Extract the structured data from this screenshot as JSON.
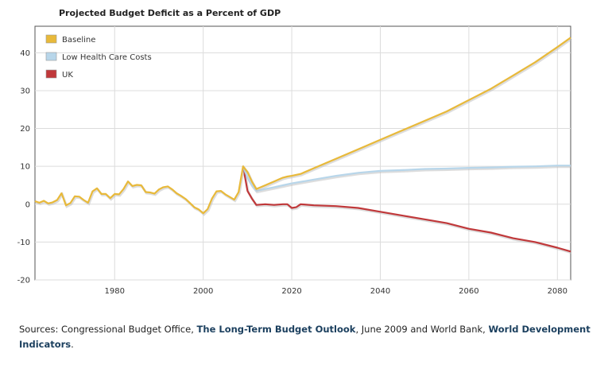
{
  "chart_data": {
    "type": "line",
    "title": "Projected Budget Deficit as a Percent of GDP",
    "xlabel": "",
    "ylabel": "",
    "xlim": [
      1962,
      2083
    ],
    "ylim": [
      -20,
      47
    ],
    "x_ticks": [
      1980,
      2000,
      2020,
      2040,
      2060,
      2080
    ],
    "y_ticks": [
      -20,
      -10,
      0,
      10,
      20,
      30,
      40
    ],
    "grid": true,
    "legend_position": "top-left",
    "series": [
      {
        "name": "Baseline",
        "color": "#e8b93a",
        "points": [
          [
            1962,
            0.8
          ],
          [
            1963,
            0.4
          ],
          [
            1964,
            0.9
          ],
          [
            1965,
            0.2
          ],
          [
            1966,
            0.5
          ],
          [
            1967,
            1.1
          ],
          [
            1968,
            2.9
          ],
          [
            1969,
            -0.3
          ],
          [
            1970,
            0.3
          ],
          [
            1971,
            2.1
          ],
          [
            1972,
            2.0
          ],
          [
            1973,
            1.1
          ],
          [
            1974,
            0.4
          ],
          [
            1975,
            3.4
          ],
          [
            1976,
            4.2
          ],
          [
            1977,
            2.7
          ],
          [
            1978,
            2.7
          ],
          [
            1979,
            1.6
          ],
          [
            1980,
            2.7
          ],
          [
            1981,
            2.6
          ],
          [
            1982,
            4.0
          ],
          [
            1983,
            6.0
          ],
          [
            1984,
            4.8
          ],
          [
            1985,
            5.1
          ],
          [
            1986,
            5.0
          ],
          [
            1987,
            3.2
          ],
          [
            1988,
            3.1
          ],
          [
            1989,
            2.8
          ],
          [
            1990,
            3.9
          ],
          [
            1991,
            4.5
          ],
          [
            1992,
            4.7
          ],
          [
            1993,
            3.9
          ],
          [
            1994,
            2.9
          ],
          [
            1995,
            2.2
          ],
          [
            1996,
            1.4
          ],
          [
            1997,
            0.3
          ],
          [
            1998,
            -0.8
          ],
          [
            1999,
            -1.4
          ],
          [
            2000,
            -2.4
          ],
          [
            2001,
            -1.3
          ],
          [
            2002,
            1.5
          ],
          [
            2003,
            3.4
          ],
          [
            2004,
            3.5
          ],
          [
            2005,
            2.6
          ],
          [
            2006,
            1.9
          ],
          [
            2007,
            1.2
          ],
          [
            2008,
            3.2
          ],
          [
            2009,
            10.0
          ],
          [
            2010,
            8.5
          ],
          [
            2011,
            6.0
          ],
          [
            2012,
            4.0
          ],
          [
            2013,
            4.5
          ],
          [
            2014,
            5.0
          ],
          [
            2015,
            5.5
          ],
          [
            2016,
            6.0
          ],
          [
            2017,
            6.5
          ],
          [
            2018,
            7.0
          ],
          [
            2019,
            7.3
          ],
          [
            2020,
            7.5
          ],
          [
            2022,
            8.0
          ],
          [
            2025,
            9.5
          ],
          [
            2030,
            12.0
          ],
          [
            2035,
            14.5
          ],
          [
            2040,
            17.0
          ],
          [
            2045,
            19.5
          ],
          [
            2050,
            22.0
          ],
          [
            2055,
            24.5
          ],
          [
            2060,
            27.5
          ],
          [
            2065,
            30.5
          ],
          [
            2070,
            34.0
          ],
          [
            2075,
            37.5
          ],
          [
            2080,
            41.5
          ],
          [
            2083,
            44.0
          ]
        ]
      },
      {
        "name": "Low Health Care Costs",
        "color": "#b8d6ea",
        "points": [
          [
            2009,
            10.0
          ],
          [
            2010,
            7.0
          ],
          [
            2011,
            5.0
          ],
          [
            2012,
            3.5
          ],
          [
            2014,
            4.0
          ],
          [
            2016,
            4.5
          ],
          [
            2018,
            5.0
          ],
          [
            2020,
            5.5
          ],
          [
            2025,
            6.5
          ],
          [
            2030,
            7.5
          ],
          [
            2035,
            8.3
          ],
          [
            2040,
            8.8
          ],
          [
            2045,
            9.0
          ],
          [
            2050,
            9.3
          ],
          [
            2055,
            9.4
          ],
          [
            2060,
            9.6
          ],
          [
            2065,
            9.7
          ],
          [
            2070,
            9.9
          ],
          [
            2075,
            10.0
          ],
          [
            2080,
            10.2
          ],
          [
            2083,
            10.2
          ]
        ]
      },
      {
        "name": "UK",
        "color": "#c0383a",
        "points": [
          [
            2009,
            10.0
          ],
          [
            2010,
            3.5
          ],
          [
            2011,
            1.5
          ],
          [
            2012,
            -0.2
          ],
          [
            2014,
            0.0
          ],
          [
            2016,
            -0.2
          ],
          [
            2018,
            0.0
          ],
          [
            2019,
            0.0
          ],
          [
            2020,
            -1.0
          ],
          [
            2021,
            -0.8
          ],
          [
            2022,
            0.0
          ],
          [
            2025,
            -0.3
          ],
          [
            2030,
            -0.5
          ],
          [
            2035,
            -1.0
          ],
          [
            2040,
            -2.0
          ],
          [
            2045,
            -3.0
          ],
          [
            2050,
            -4.0
          ],
          [
            2055,
            -5.0
          ],
          [
            2060,
            -6.5
          ],
          [
            2065,
            -7.5
          ],
          [
            2070,
            -9.0
          ],
          [
            2075,
            -10.0
          ],
          [
            2080,
            -11.5
          ],
          [
            2083,
            -12.5
          ]
        ]
      }
    ]
  },
  "sources": {
    "prefix": "Sources: Congressional Budget Office, ",
    "link1": "The Long-Term Budget Outlook",
    "middle": ", June 2009 and World Bank, ",
    "link2": "World Development Indicators",
    "suffix": "."
  }
}
